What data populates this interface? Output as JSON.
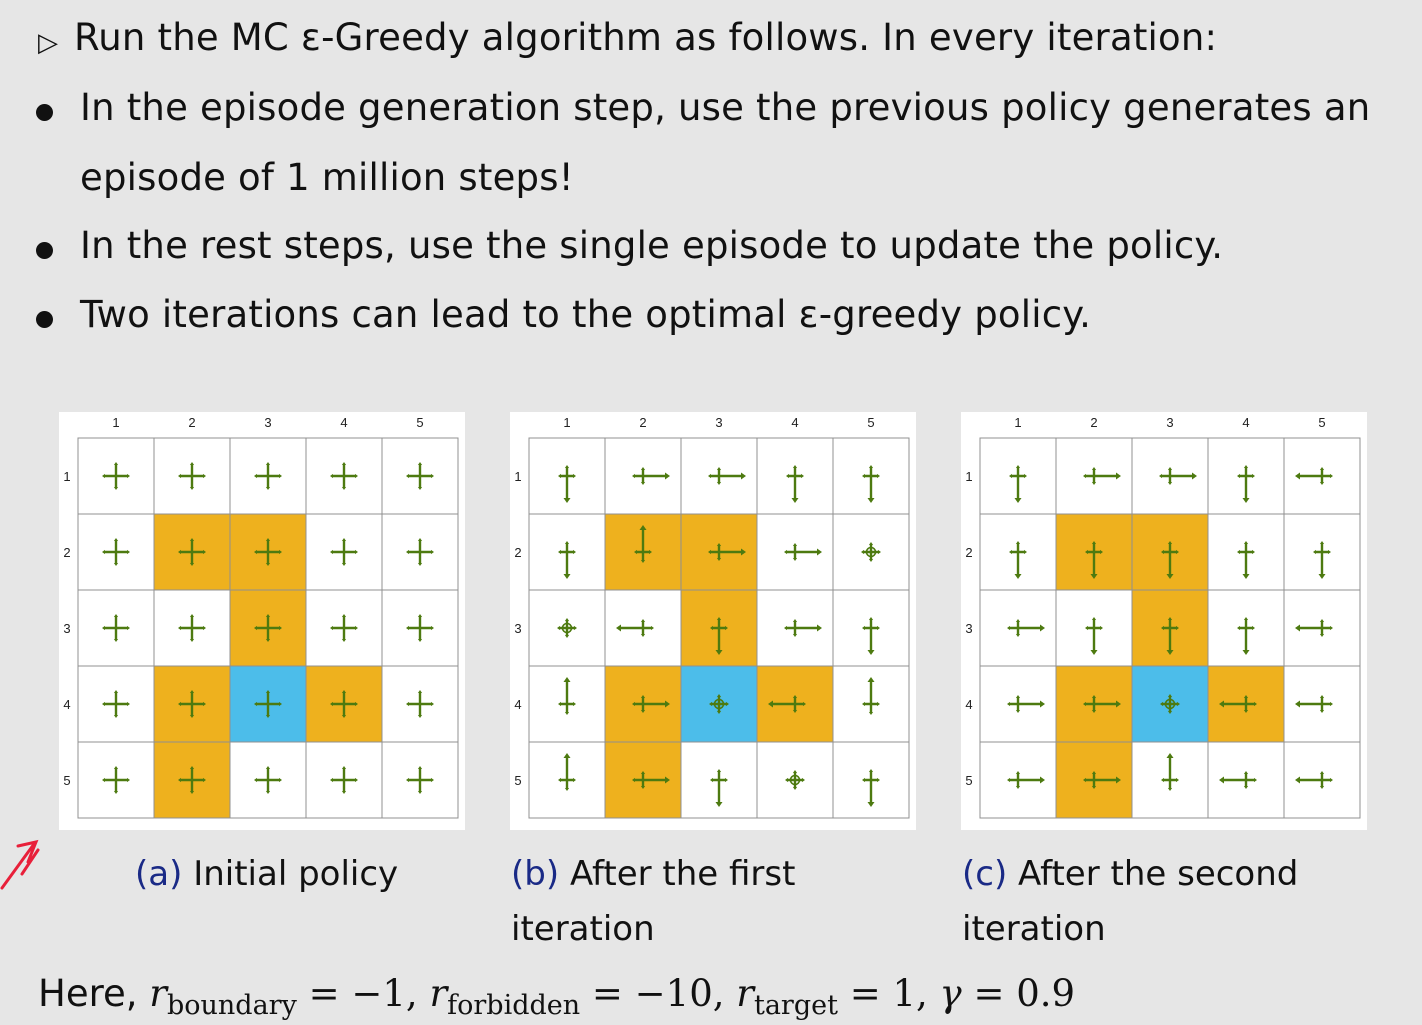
{
  "text": {
    "intro": "Run the MC ε-Greedy algorithm as follows. In every iteration:",
    "bullets": [
      "In the episode generation step, use the previous policy generates an",
      "episode of 1 million steps!",
      "In the rest steps, use the single episode to update the policy.",
      "Two iterations can lead to the optimal ε-greedy policy."
    ]
  },
  "panels": [
    {
      "label": "(a)",
      "caption_line1": "Initial policy",
      "caption_line2": "",
      "policy": [
        [
          "u",
          "u",
          "u",
          "u",
          "u"
        ],
        [
          "u",
          "u",
          "u",
          "u",
          "u"
        ],
        [
          "u",
          "u",
          "u",
          "u",
          "u"
        ],
        [
          "u",
          "u",
          "u",
          "u",
          "u"
        ],
        [
          "u",
          "u",
          "u",
          "u",
          "u"
        ]
      ]
    },
    {
      "label": "(b)",
      "caption_line1": "After the first",
      "caption_line2": "iteration",
      "policy": [
        [
          "D",
          "R",
          "R",
          "D",
          "D"
        ],
        [
          "D",
          "U",
          "R",
          "R",
          "S"
        ],
        [
          "S",
          "L",
          "D",
          "R",
          "D"
        ],
        [
          "U",
          "R",
          "S",
          "L",
          "U"
        ],
        [
          "U",
          "R",
          "D",
          "S",
          "D"
        ]
      ]
    },
    {
      "label": "(c)",
      "caption_line1": "After the second",
      "caption_line2": "iteration",
      "policy": [
        [
          "D",
          "R",
          "R",
          "D",
          "L"
        ],
        [
          "D",
          "D",
          "D",
          "D",
          "D"
        ],
        [
          "R",
          "D",
          "D",
          "D",
          "L"
        ],
        [
          "R",
          "R",
          "S",
          "L",
          "L"
        ],
        [
          "R",
          "R",
          "U",
          "L",
          "L"
        ]
      ]
    }
  ],
  "grid": {
    "col_labels": [
      "1",
      "2",
      "3",
      "4",
      "5"
    ],
    "row_labels": [
      "1",
      "2",
      "3",
      "4",
      "5"
    ],
    "cell_types": [
      [
        "e",
        "e",
        "e",
        "e",
        "e"
      ],
      [
        "e",
        "f",
        "f",
        "e",
        "e"
      ],
      [
        "e",
        "e",
        "f",
        "e",
        "e"
      ],
      [
        "e",
        "f",
        "t",
        "f",
        "e"
      ],
      [
        "e",
        "f",
        "e",
        "e",
        "e"
      ]
    ]
  },
  "colors": {
    "forbidden": "#eeb11e",
    "target": "#4cbdea",
    "arrow": "#4d7a10",
    "grid_line": "#909090",
    "caption_label": "#1a2a86",
    "pen_mark": "#e8203a"
  },
  "formula": {
    "lead": "Here,",
    "r": "r",
    "boundary_sub": "boundary",
    "boundary_val": "= −1,",
    "forbidden_sub": "forbidden",
    "forbidden_val": "= −10,",
    "target_sub": "target",
    "target_val": "= 1,",
    "gamma": "γ",
    "gamma_val": "= 0.9"
  }
}
